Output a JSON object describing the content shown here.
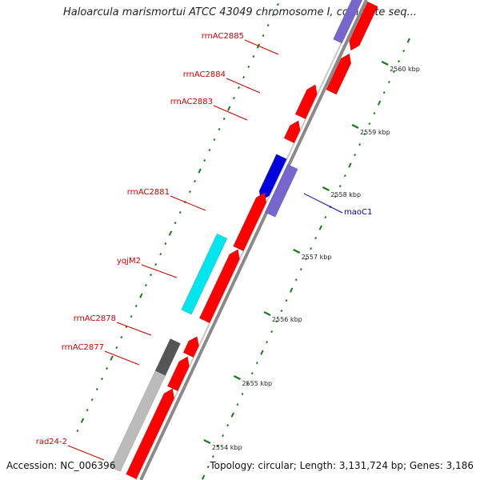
{
  "title": "Haloarcula marismortui ATCC 43049 chromosome I, complete seq...",
  "footer": {
    "accession": "Accession: NC_006396",
    "summary": "Topology: circular; Length: 3,131,724 bp; Genes: 3,186"
  },
  "colors": {
    "rrna": "#ff0000",
    "blue_gene": "#0000dd",
    "purple_gene": "#7766cc",
    "cyan_gene": "#00e5ee",
    "gray_gene": "#bbbbbb",
    "dark_gene": "#555555",
    "tick": "#1a7a1a",
    "label_red": "#cc0000",
    "label_blue": "#0000aa"
  },
  "kbp_labels": [
    "2560 kbp",
    "2559 kbp",
    "2558 kbp",
    "2557 kbp",
    "2556 kbp",
    "2555 kbp",
    "2554 kbp"
  ],
  "gene_labels": [
    "rrnAC2885",
    "rrnAC2884",
    "rrnAC2883",
    "rrnAC2881",
    "yqjM2",
    "rrnAC2878",
    "rrnAC2877",
    "rad24-2",
    "maoC1"
  ]
}
